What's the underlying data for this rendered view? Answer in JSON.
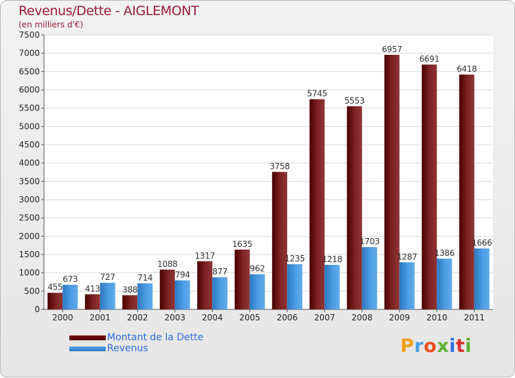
{
  "title": "Revenus/Dette - AIGLEMONT",
  "subtitle": "(en milliers d'€)",
  "logo": {
    "text": "Proxiti",
    "letters": [
      "P",
      "r",
      "o",
      "x",
      "i",
      "t",
      "i"
    ]
  },
  "legend": [
    {
      "label": "Montant de la Dette",
      "color": "#5a0000"
    },
    {
      "label": "Revenus",
      "color": "#3c8fd8"
    }
  ],
  "chart_data": {
    "type": "bar",
    "title": "Revenus/Dette - AIGLEMONT",
    "ylabel": "(en milliers d'€)",
    "xlabel": "",
    "categories": [
      "2000",
      "2001",
      "2002",
      "2003",
      "2004",
      "2005",
      "2006",
      "2007",
      "2008",
      "2009",
      "2010",
      "2011"
    ],
    "series": [
      {
        "name": "Montant de la Dette",
        "color": "#6b0b0b",
        "values": [
          455,
          413,
          388,
          1088,
          1317,
          1635,
          3758,
          5745,
          5553,
          6957,
          6691,
          6418
        ]
      },
      {
        "name": "Revenus",
        "color": "#3c8fd8",
        "values": [
          673,
          727,
          714,
          794,
          877,
          962,
          1235,
          1218,
          1703,
          1287,
          1386,
          1666
        ]
      }
    ],
    "ylim": [
      0,
      7500
    ],
    "yticks": [
      0,
      500,
      1000,
      1500,
      2000,
      2500,
      3000,
      3500,
      4000,
      4500,
      5000,
      5500,
      6000,
      6500,
      7000,
      7500
    ],
    "grid": true,
    "legend_position": "bottom-left"
  }
}
